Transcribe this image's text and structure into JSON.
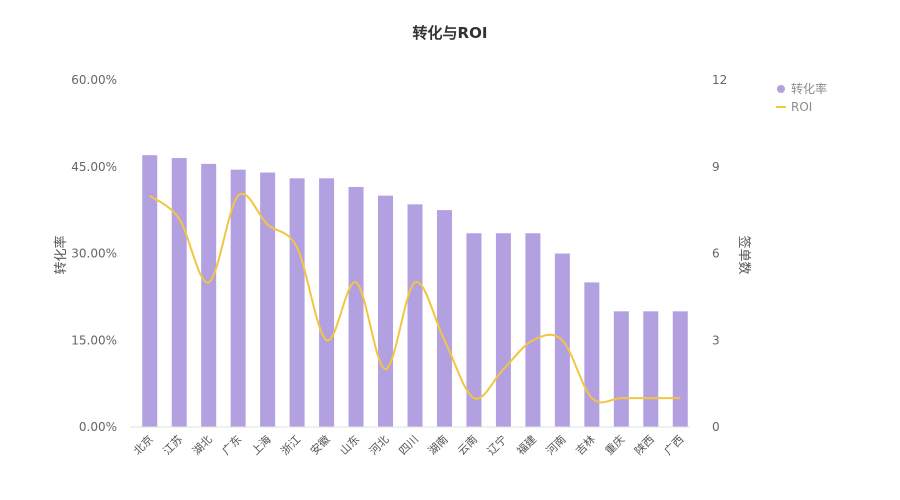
{
  "chart_data": {
    "type": "bar",
    "title": "转化与ROI",
    "categories": [
      "北京",
      "江苏",
      "湖北",
      "广东",
      "上海",
      "浙江",
      "安徽",
      "山东",
      "河北",
      "四川",
      "湖南",
      "云南",
      "辽宁",
      "福建",
      "河南",
      "吉林",
      "重庆",
      "陕西",
      "广西"
    ],
    "series": [
      {
        "name": "转化率",
        "type": "bar",
        "axis": "left",
        "values": [
          47,
          46.5,
          45.5,
          44.5,
          44,
          43,
          43,
          41.5,
          40,
          38.5,
          37.5,
          33.5,
          33.5,
          33.5,
          30,
          25,
          20,
          20,
          20
        ]
      },
      {
        "name": "ROI",
        "type": "line",
        "axis": "right",
        "smooth": true,
        "values": [
          8,
          7.2,
          5,
          8,
          7,
          6.2,
          3,
          5,
          2,
          5,
          3,
          1,
          2,
          3,
          3,
          1,
          1,
          1,
          1
        ]
      }
    ],
    "ylabel": "转化率",
    "y2label": "签单数",
    "ylim": [
      0,
      60
    ],
    "y2lim": [
      0,
      12
    ],
    "yticks": [
      "0.00%",
      "15.00%",
      "30.00%",
      "45.00%",
      "60.00%"
    ],
    "y2ticks": [
      "0",
      "3",
      "6",
      "9",
      "12"
    ],
    "legend_position": "top-right",
    "grid": false,
    "colors": {
      "bar": "#b3a0e0",
      "line": "#f2c641"
    }
  }
}
